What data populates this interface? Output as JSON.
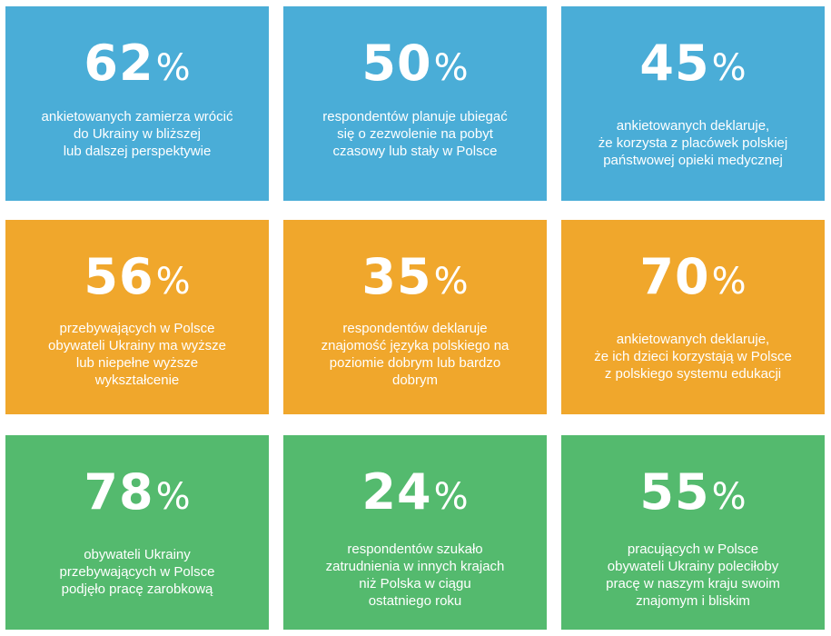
{
  "colors": {
    "blue": "#4aadd7",
    "orange": "#f0a72c",
    "green": "#54ba6e",
    "text": "#ffffff"
  },
  "tiles": [
    {
      "number": "62",
      "percent_sign": "%",
      "value_percent": 62,
      "description": "ankietowanych zamierza wrócić\ndo Ukrainy w bliższej\nlub dalszej perspektywie"
    },
    {
      "number": "50",
      "percent_sign": "%",
      "value_percent": 50,
      "description": "respondentów planuje ubiegać\nsię o zezwolenie na pobyt\nczasowy lub stały w Polsce"
    },
    {
      "number": "45",
      "percent_sign": "%",
      "value_percent": 45,
      "description": "ankietowanych deklaruje,\nże korzysta z placówek polskiej\npaństwowej opieki medycznej"
    },
    {
      "number": "56",
      "percent_sign": "%",
      "value_percent": 56,
      "description": "przebywających w Polsce\nobywateli Ukrainy ma wyższe\nlub niepełne wyższe\nwykształcenie"
    },
    {
      "number": "35",
      "percent_sign": "%",
      "value_percent": 35,
      "description": "respondentów deklaruje\nznajomość języka polskiego na\npoziomie dobrym lub bardzo\ndobrym"
    },
    {
      "number": "70",
      "percent_sign": "%",
      "value_percent": 70,
      "description": "ankietowanych deklaruje,\nże ich dzieci korzystają w Polsce\nz polskiego systemu edukacji"
    },
    {
      "number": "78",
      "percent_sign": "%",
      "value_percent": 78,
      "description": "obywateli Ukrainy\nprzebywających w Polsce\npodjęło pracę zarobkową"
    },
    {
      "number": "24",
      "percent_sign": "%",
      "value_percent": 24,
      "description": "respondentów szukało\nzatrudnienia w innych krajach\nniż Polska w ciągu\nostatniego roku"
    },
    {
      "number": "55",
      "percent_sign": "%",
      "value_percent": 55,
      "description": "pracujących w Polsce\nobywateli Ukrainy poleciłoby\npracę w naszym kraju swoim\nznajomym i bliskim"
    }
  ]
}
